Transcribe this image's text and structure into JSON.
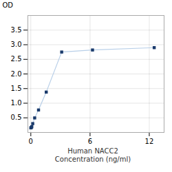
{
  "chart_data": {
    "type": "line",
    "x": [
      0.0,
      0.049,
      0.098,
      0.195,
      0.39,
      0.781,
      1.563,
      3.125,
      6.25,
      12.5
    ],
    "values": [
      0.156,
      0.168,
      0.195,
      0.302,
      0.496,
      0.768,
      1.38,
      2.75,
      2.82,
      2.9
    ],
    "xlabel": "Human NACC2\nConcentration (ng/ml)",
    "ylabel": "OD",
    "color": "#b8cfe8",
    "marker_color": "#1a3a6b",
    "marker": "square",
    "xlim": [
      -0.3,
      13.5
    ],
    "ylim": [
      0,
      4.0
    ],
    "xticks": [
      0,
      6,
      12
    ],
    "yticks": [
      0.5,
      {
        "value": 1.0,
        "label": "1.0"
      },
      1.5,
      {
        "value": 2.0,
        "label": "2.0"
      },
      2.5,
      {
        "value": 3.0,
        "label": "3.0"
      },
      3.5
    ],
    "grid": true
  }
}
